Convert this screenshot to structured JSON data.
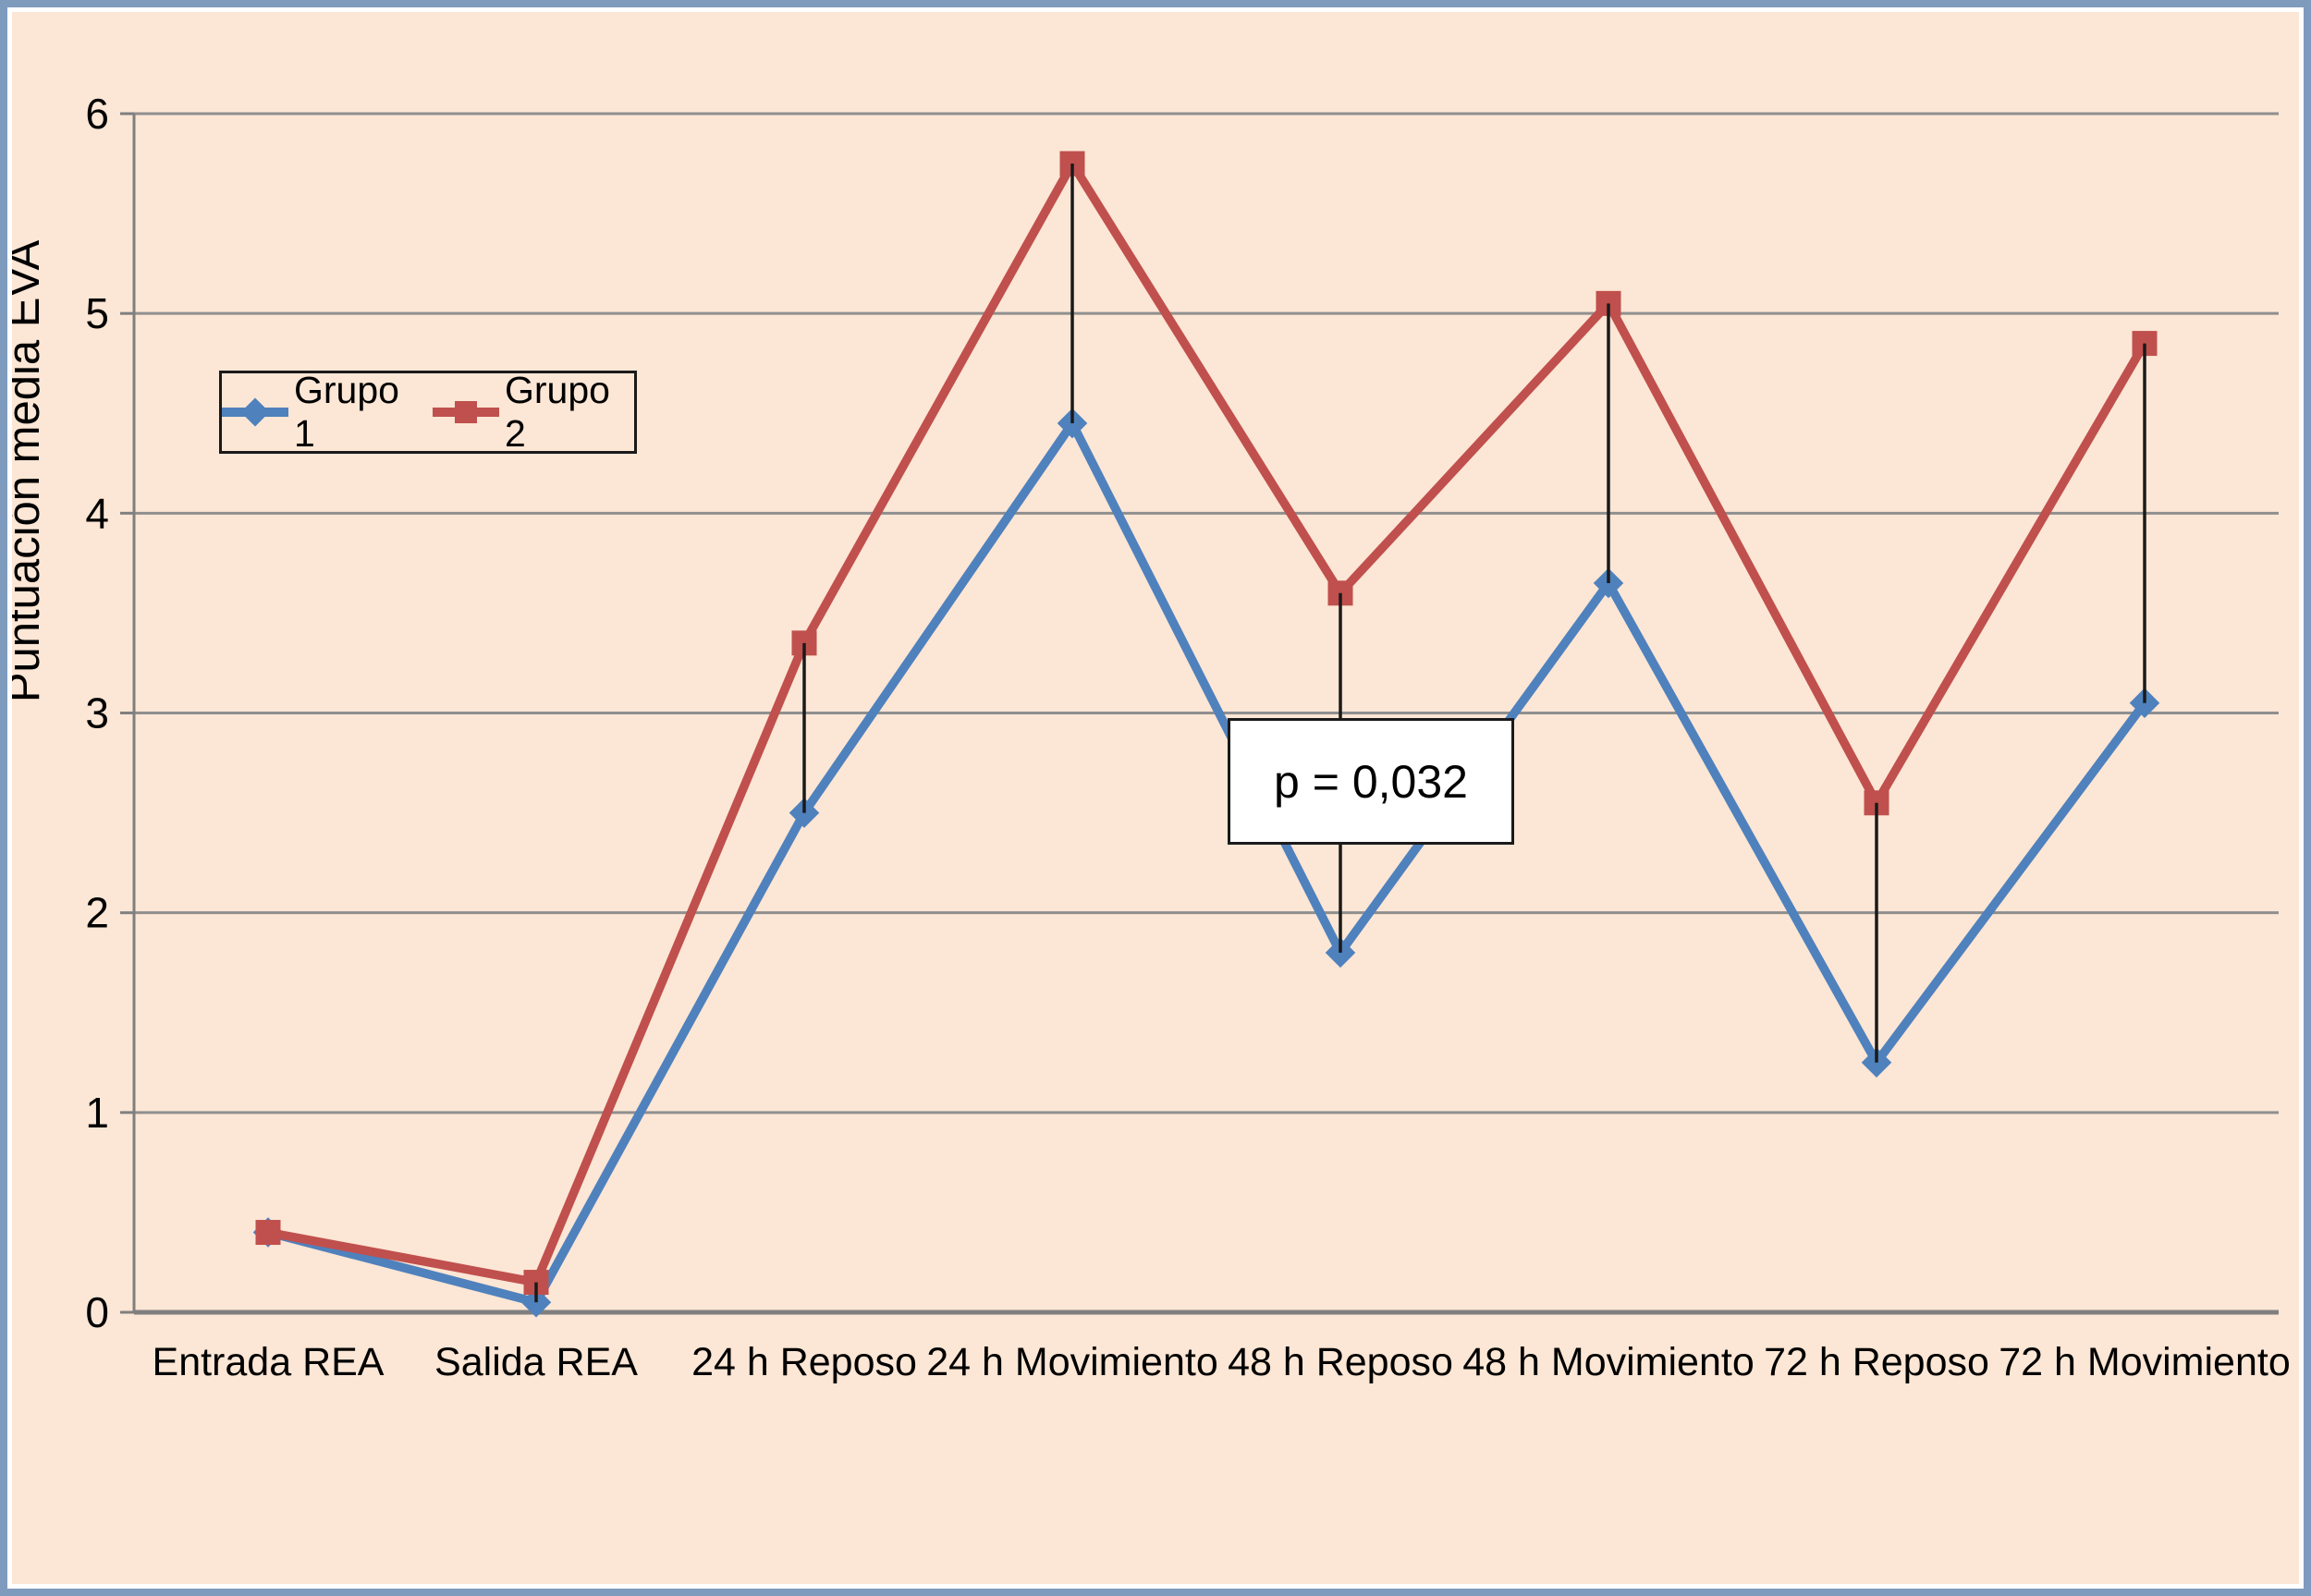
{
  "chart_data": {
    "type": "line",
    "title": "",
    "ylabel": "Puntuación media EVA",
    "xlabel": "",
    "categories": [
      "Entrada REA",
      "Salida REA",
      "24 h Reposo",
      "24 h Movimiento",
      "48 h Reposo",
      "48 h Movimiento",
      "72 h Reposo",
      "72 h Movimiento"
    ],
    "series": [
      {
        "name": "Grupo 1",
        "color": "#4F81BD",
        "marker": "diamond",
        "values": [
          0.4,
          0.05,
          2.5,
          4.45,
          1.8,
          3.65,
          1.25,
          3.05
        ]
      },
      {
        "name": "Grupo 2",
        "color": "#C0504D",
        "marker": "square",
        "values": [
          0.4,
          0.15,
          3.35,
          5.75,
          3.6,
          5.05,
          2.55,
          4.85
        ]
      }
    ],
    "yticks": [
      0,
      1,
      2,
      3,
      4,
      5,
      6
    ],
    "ylim": [
      0,
      6
    ],
    "grid": true,
    "legend_position": "inside-upper-left",
    "annotation": {
      "text": "p = 0,032",
      "attached_category": "48 h Reposo"
    },
    "connectors": "vertical black difference lines between Grupo 1 and Grupo 2 at each category"
  },
  "colors": {
    "plot_background": "#FCE6D5",
    "frame_border": "#7E9BBD",
    "frame_inner": "#FFFFFF",
    "gridline": "#8F8F8F",
    "axis": "#7F7F7F",
    "connector": "#1A1A1A",
    "series_grupo1": "#4F81BD",
    "series_grupo2": "#C0504D",
    "annotation_background": "#FFFFFF",
    "text": "#000000"
  }
}
